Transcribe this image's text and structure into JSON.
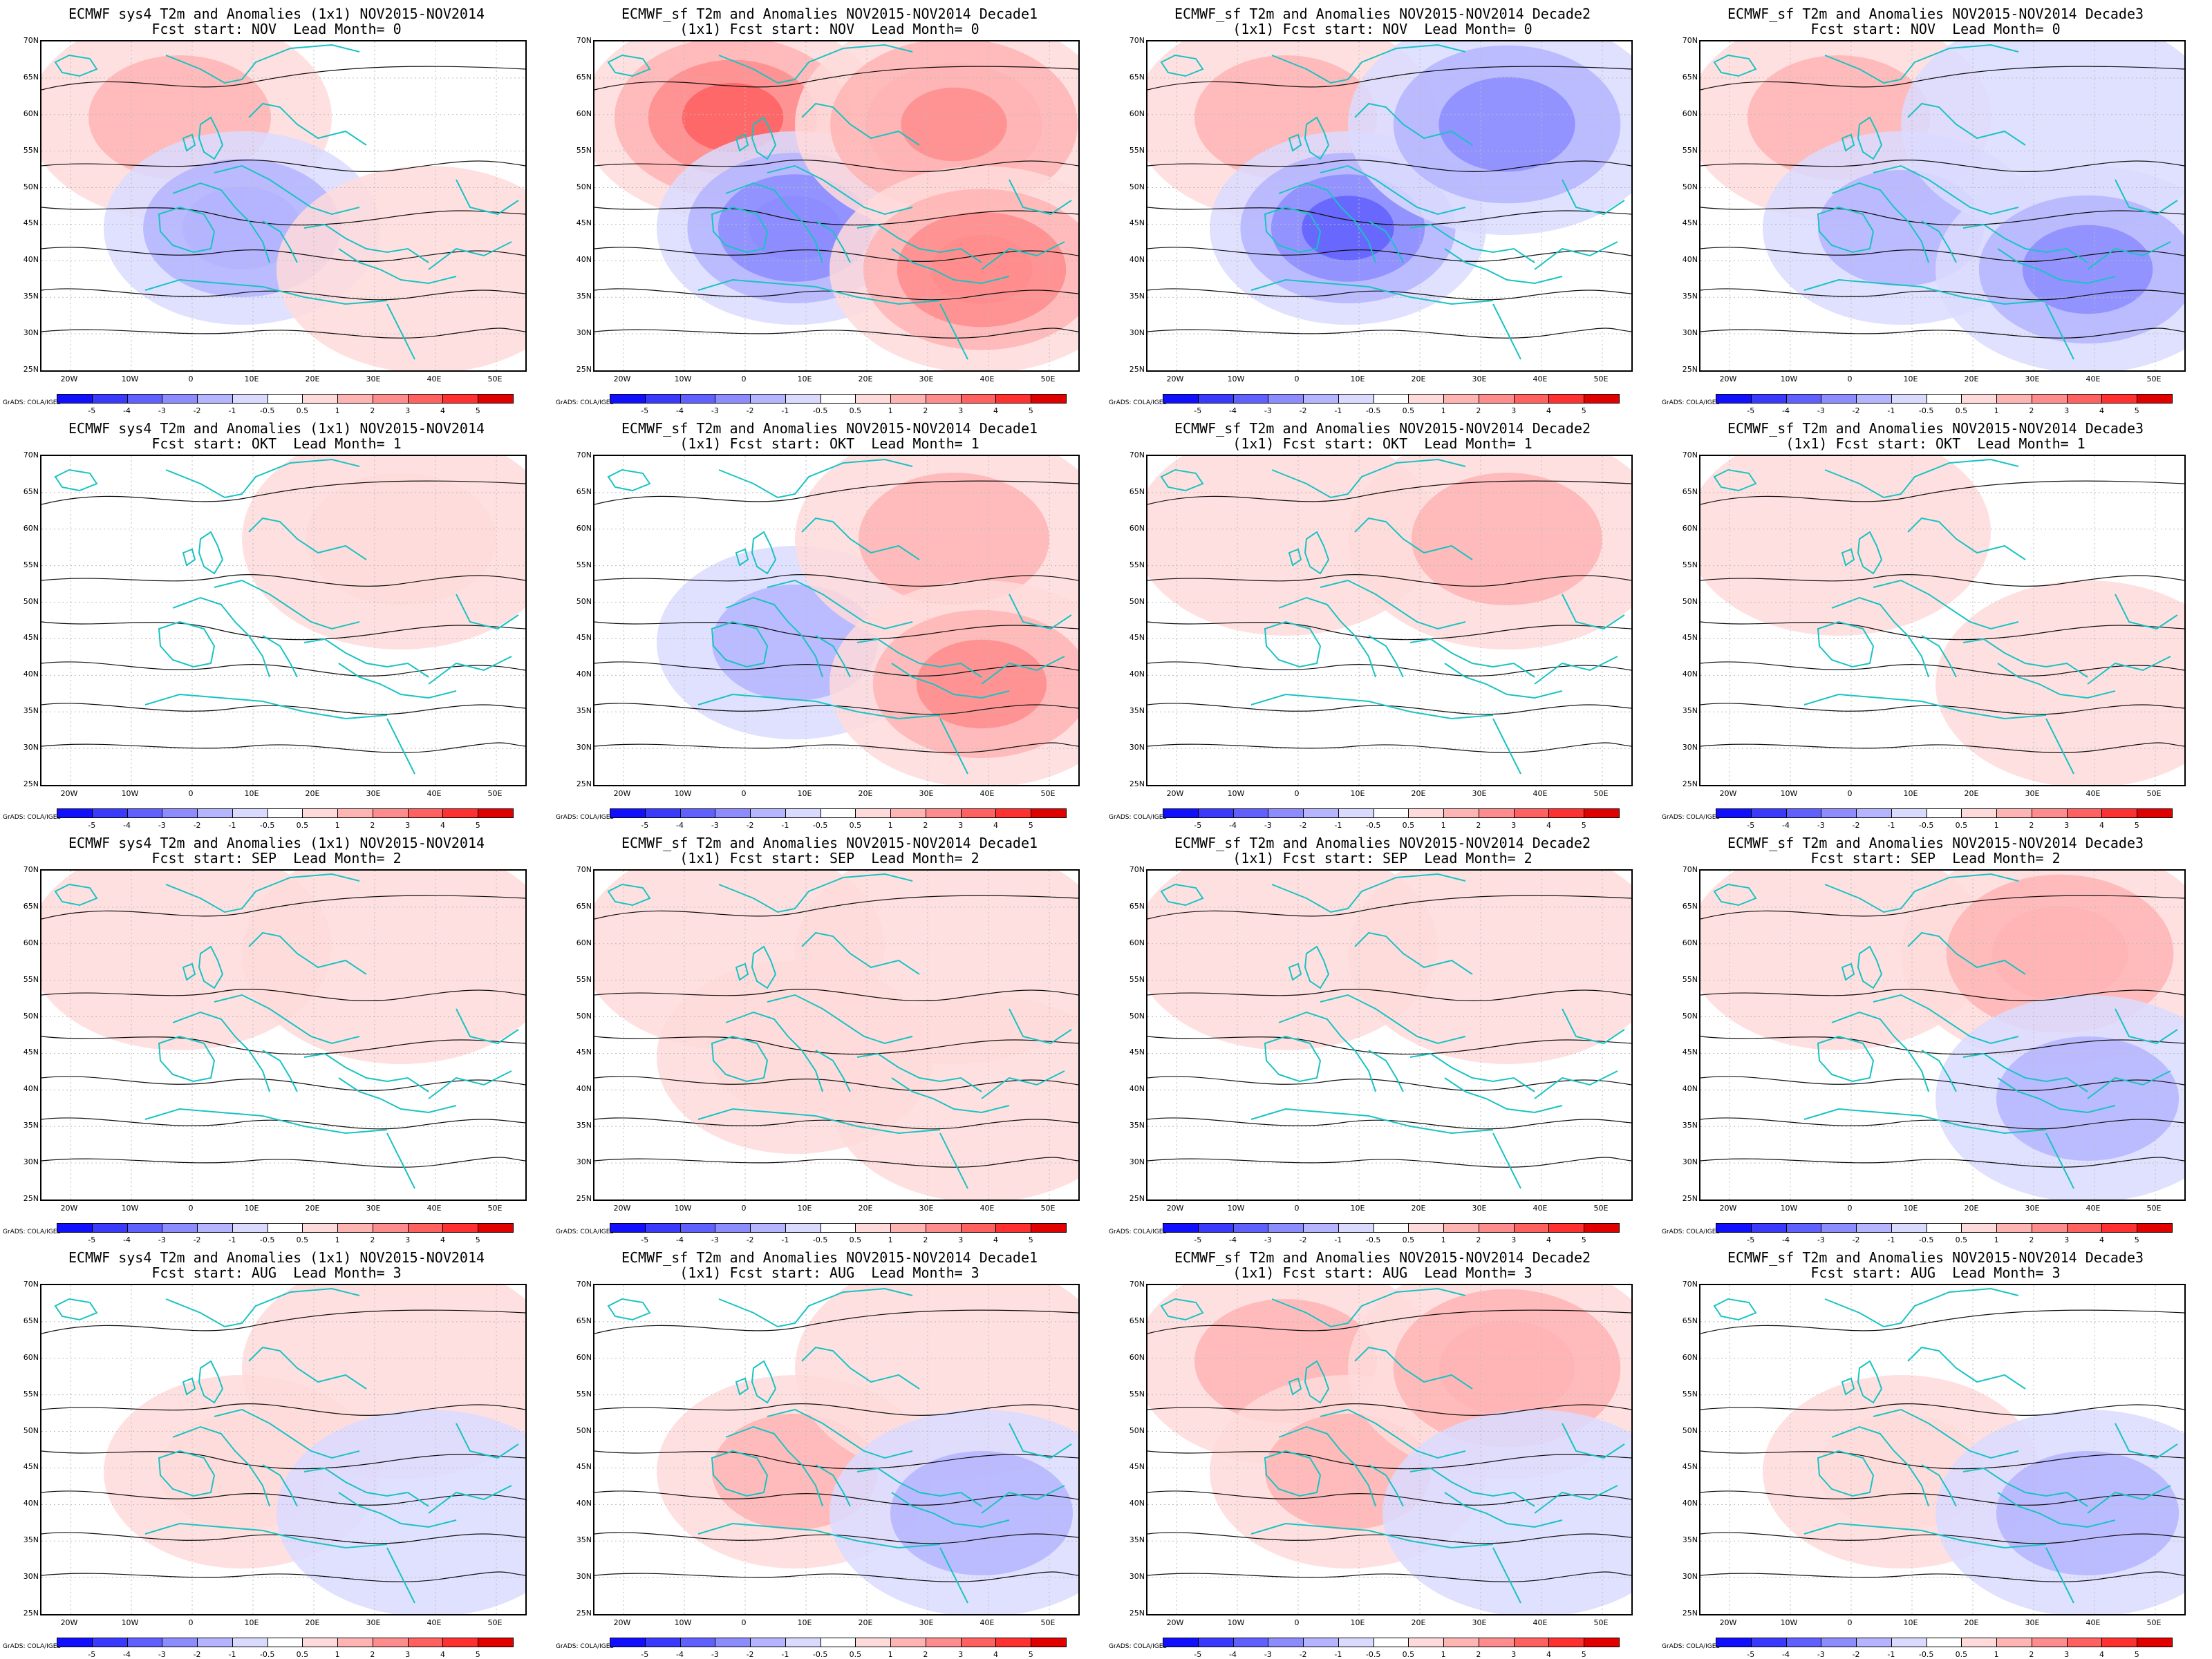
{
  "panels": [
    {
      "title1": "ECMWF sys4 T2m and Anomalies (1x1) NOV2015-NOV2014",
      "title2": "Fcst start: NOV  Lead Month= 0",
      "pattern": [
        1.2,
        -1.8,
        0.4,
        0.6
      ]
    },
    {
      "title1": "ECMWF_sf T2m and Anomalies NOV2015-NOV2014 Decade1",
      "title2": "(1x1) Fcst start: NOV  Lead Month= 0",
      "pattern": [
        3.2,
        -2.8,
        2.6,
        2.8
      ]
    },
    {
      "title1": "ECMWF_sf T2m and Anomalies NOV2015-NOV2014 Decade2",
      "title2": "(1x1) Fcst start: NOV  Lead Month= 0",
      "pattern": [
        1.6,
        -3.0,
        -2.4,
        0.4
      ]
    },
    {
      "title1": "ECMWF_sf T2m and Anomalies NOV2015-NOV2014 Decade3",
      "title2": "Fcst start: NOV  Lead Month= 0",
      "pattern": [
        1.2,
        -1.0,
        -0.6,
        -2.2
      ]
    },
    {
      "title1": "ECMWF sys4 T2m and Anomalies (1x1) NOV2015-NOV2014",
      "title2": "Fcst start: OKT  Lead Month= 1",
      "pattern": [
        0.3,
        0.0,
        1.0,
        0.4
      ]
    },
    {
      "title1": "ECMWF_sf T2m and Anomalies NOV2015-NOV2014 Decade1",
      "title2": "(1x1) Fcst start: OKT  Lead Month= 1",
      "pattern": [
        0.4,
        -1.5,
        1.4,
        2.2
      ]
    },
    {
      "title1": "ECMWF_sf T2m and Anomalies NOV2015-NOV2014 Decade2",
      "title2": "(1x1) Fcst start: OKT  Lead Month= 1",
      "pattern": [
        0.6,
        0.1,
        1.2,
        0.4
      ]
    },
    {
      "title1": "ECMWF_sf T2m and Anomalies NOV2015-NOV2014 Decade3",
      "title2": "(1x1) Fcst start: OKT  Lead Month= 1",
      "pattern": [
        0.8,
        0.0,
        0.3,
        0.5
      ]
    },
    {
      "title1": "ECMWF sys4 T2m and Anomalies (1x1) NOV2015-NOV2014",
      "title2": "Fcst start: SEP  Lead Month= 2",
      "pattern": [
        0.5,
        0.2,
        0.8,
        0.2
      ]
    },
    {
      "title1": "ECMWF_sf T2m and Anomalies NOV2015-NOV2014 Decade1",
      "title2": "(1x1) Fcst start: SEP  Lead Month= 2",
      "pattern": [
        0.5,
        1.0,
        0.6,
        0.5
      ]
    },
    {
      "title1": "ECMWF_sf T2m and Anomalies NOV2015-NOV2014 Decade2",
      "title2": "(1x1) Fcst start: SEP  Lead Month= 2",
      "pattern": [
        0.5,
        0.4,
        0.6,
        0.3
      ]
    },
    {
      "title1": "ECMWF_sf T2m and Anomalies NOV2015-NOV2014 Decade3",
      "title2": "Fcst start: SEP  Lead Month= 2",
      "pattern": [
        0.6,
        0.4,
        1.8,
        -1.4
      ]
    },
    {
      "title1": "ECMWF sys4 T2m and Anomalies (1x1) NOV2015-NOV2014",
      "title2": "Fcst start: AUG  Lead Month= 3",
      "pattern": [
        0.4,
        0.9,
        0.6,
        -0.8
      ]
    },
    {
      "title1": "ECMWF_sf T2m and Anomalies NOV2015-NOV2014 Decade1",
      "title2": "(1x1) Fcst start: AUG  Lead Month= 3",
      "pattern": [
        0.4,
        1.6,
        0.5,
        -1.0
      ]
    },
    {
      "title1": "ECMWF_sf T2m and Anomalies NOV2015-NOV2014 Decade2",
      "title2": "(1x1) Fcst start: AUG  Lead Month= 3",
      "pattern": [
        1.4,
        1.2,
        1.8,
        -0.8
      ]
    },
    {
      "title1": "ECMWF_sf T2m and Anomalies NOV2015-NOV2014 Decade3",
      "title2": "Fcst start: AUG  Lead Month= 3",
      "pattern": [
        0.3,
        1.0,
        0.4,
        -1.2
      ]
    }
  ],
  "lat_labels": [
    "70N",
    "65N",
    "60N",
    "55N",
    "50N",
    "45N",
    "40N",
    "35N",
    "30N",
    "25N"
  ],
  "lon_labels": [
    "20W",
    "10W",
    "0",
    "10E",
    "20E",
    "30E",
    "40E",
    "50E"
  ],
  "colorbar": {
    "labels": [
      "-5",
      "-4",
      "-3",
      "-2",
      "-1",
      "-0.5",
      "0.5",
      "1",
      "2",
      "3",
      "4",
      "5"
    ],
    "colors": [
      "#1010ff",
      "#3a3aff",
      "#6060ff",
      "#8c8cff",
      "#b4b4ff",
      "#dadaff",
      "#ffffff",
      "#ffdada",
      "#ffb4b4",
      "#ff8c8c",
      "#ff6060",
      "#ff3030",
      "#e00000"
    ]
  },
  "credit": "GrADS: COLA/IGES",
  "colors": {
    "coast": "#19c3c3",
    "contour": "#111111"
  }
}
